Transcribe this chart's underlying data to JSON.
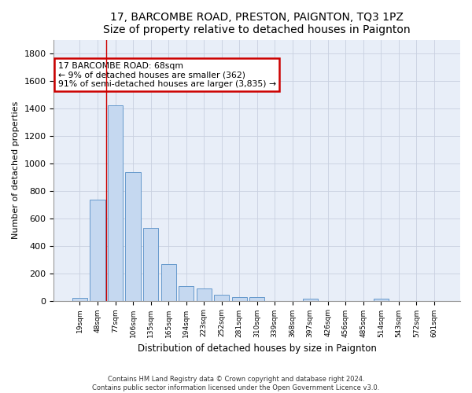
{
  "title1": "17, BARCOMBE ROAD, PRESTON, PAIGNTON, TQ3 1PZ",
  "title2": "Size of property relative to detached houses in Paignton",
  "xlabel": "Distribution of detached houses by size in Paignton",
  "ylabel": "Number of detached properties",
  "categories": [
    "19sqm",
    "48sqm",
    "77sqm",
    "106sqm",
    "135sqm",
    "165sqm",
    "194sqm",
    "223sqm",
    "252sqm",
    "281sqm",
    "310sqm",
    "339sqm",
    "368sqm",
    "397sqm",
    "426sqm",
    "456sqm",
    "485sqm",
    "514sqm",
    "543sqm",
    "572sqm",
    "601sqm"
  ],
  "values": [
    22,
    735,
    1420,
    938,
    530,
    265,
    105,
    90,
    45,
    27,
    27,
    0,
    0,
    14,
    0,
    0,
    0,
    14,
    0,
    0,
    0
  ],
  "bar_color": "#c5d8f0",
  "bar_edge_color": "#6699cc",
  "annotation_text": "17 BARCOMBE ROAD: 68sqm\n← 9% of detached houses are smaller (362)\n91% of semi-detached houses are larger (3,835) →",
  "annotation_box_facecolor": "#ffffff",
  "annotation_box_edgecolor": "#cc0000",
  "vline_x": 1.5,
  "ylim": [
    0,
    1900
  ],
  "yticks": [
    0,
    200,
    400,
    600,
    800,
    1000,
    1200,
    1400,
    1600,
    1800
  ],
  "footer1": "Contains HM Land Registry data © Crown copyright and database right 2024.",
  "footer2": "Contains public sector information licensed under the Open Government Licence v3.0.",
  "bg_color": "#ffffff",
  "plot_bg_color": "#e8eef8",
  "grid_color": "#c8d0e0",
  "title_fontsize": 10,
  "subtitle_fontsize": 9
}
